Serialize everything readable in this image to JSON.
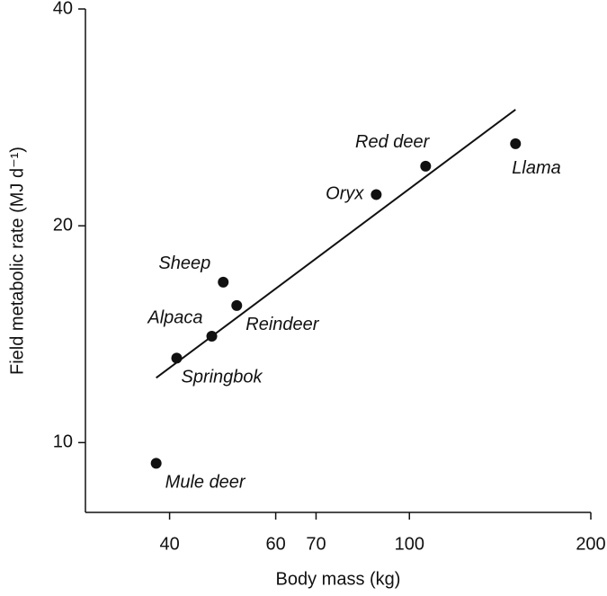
{
  "chart_data": {
    "type": "scatter",
    "xlabel": "Body mass (kg)",
    "ylabel": "Field metabolic rate (MJ d⁻¹)",
    "xscale": "log",
    "yscale": "log",
    "xlim": [
      29,
      200
    ],
    "ylim": [
      8,
      40
    ],
    "xticks": [
      40,
      60,
      70,
      100,
      200
    ],
    "yticks": [
      10,
      20,
      40
    ],
    "color": "#111111",
    "labels": [
      "Mule deer",
      "Springbok",
      "Alpaca",
      "Sheep",
      "Reindeer",
      "Oryx",
      "Red deer",
      "Llama"
    ],
    "x": [
      38.0,
      41.1,
      47.0,
      49.1,
      51.7,
      88.1,
      106.4,
      150
    ],
    "y": [
      9.36,
      13.1,
      14.05,
      16.7,
      15.5,
      22.1,
      24.2,
      26.0
    ],
    "fit_line": {
      "x": [
        38,
        150
      ],
      "y": [
        12.3,
        29.0
      ]
    }
  }
}
